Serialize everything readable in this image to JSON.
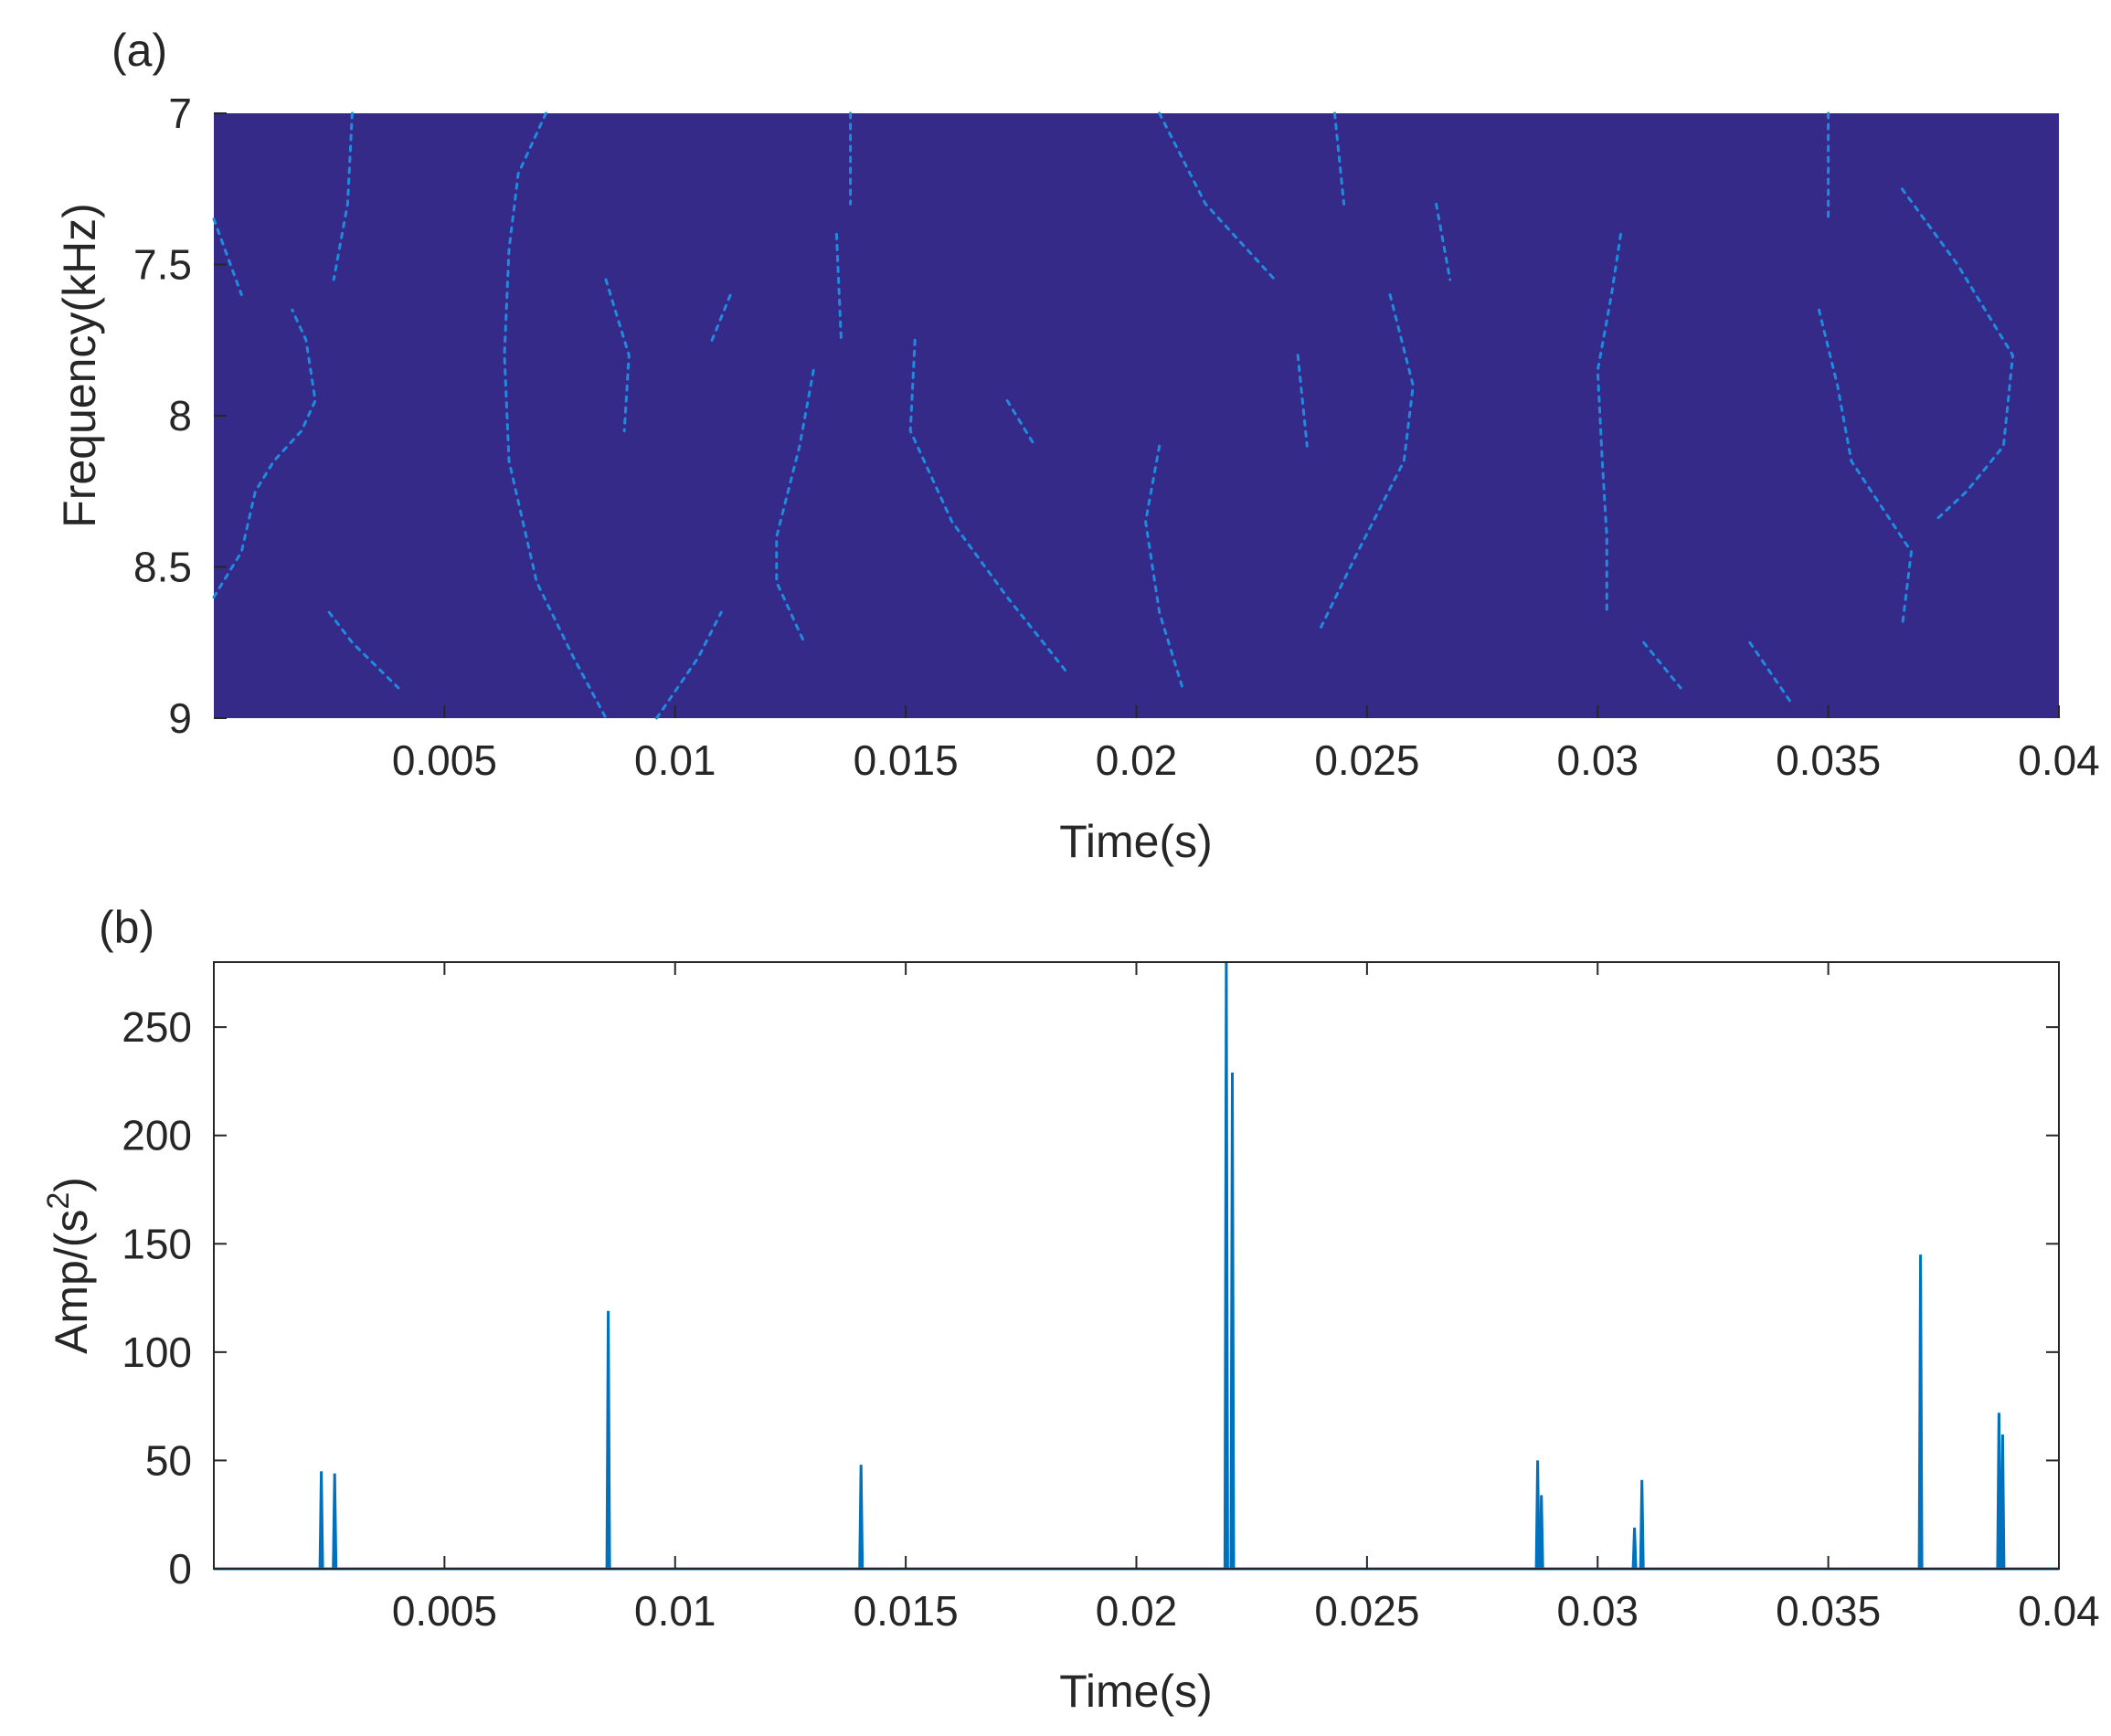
{
  "chart_data": [
    {
      "panel_label": "(a)",
      "type": "heatmap",
      "xlabel": "Time(s)",
      "ylabel": "Frequency(kHz)",
      "xlim": [
        0,
        0.04
      ],
      "ylim": [
        7,
        9
      ],
      "y_reversed": true,
      "xticks": [
        "0.005",
        "0.01",
        "0.015",
        "0.02",
        "0.025",
        "0.03",
        "0.035",
        "0.04"
      ],
      "yticks": [
        "7",
        "7.5",
        "8",
        "8.5",
        "9"
      ],
      "background_color": "#352a87",
      "ridge_color": "#1e8be0",
      "ridges": [
        [
          [
            0.0,
            8.6
          ],
          [
            0.0006,
            8.45
          ],
          [
            0.0009,
            8.25
          ],
          [
            0.0013,
            8.15
          ],
          [
            0.0019,
            8.05
          ],
          [
            0.0022,
            7.95
          ],
          [
            0.002,
            7.75
          ],
          [
            0.0017,
            7.65
          ]
        ],
        [
          [
            0.0,
            7.35
          ],
          [
            0.0006,
            7.6
          ]
        ],
        [
          [
            0.0025,
            8.65
          ],
          [
            0.003,
            8.75
          ],
          [
            0.004,
            8.9
          ]
        ],
        [
          [
            0.003,
            7.0
          ],
          [
            0.0029,
            7.3
          ],
          [
            0.0026,
            7.55
          ]
        ],
        [
          [
            0.0072,
            7.0
          ],
          [
            0.0066,
            7.2
          ],
          [
            0.0064,
            7.45
          ],
          [
            0.0063,
            7.8
          ],
          [
            0.0064,
            8.15
          ],
          [
            0.007,
            8.55
          ],
          [
            0.0078,
            8.8
          ],
          [
            0.0085,
            9.0
          ]
        ],
        [
          [
            0.0085,
            7.55
          ],
          [
            0.009,
            7.8
          ],
          [
            0.0089,
            8.05
          ]
        ],
        [
          [
            0.0096,
            9.0
          ],
          [
            0.0105,
            8.8
          ],
          [
            0.011,
            8.65
          ]
        ],
        [
          [
            0.0108,
            7.75
          ],
          [
            0.0112,
            7.6
          ]
        ],
        [
          [
            0.0138,
            7.0
          ],
          [
            0.0138,
            7.3
          ]
        ],
        [
          [
            0.0135,
            7.4
          ],
          [
            0.0136,
            7.75
          ]
        ],
        [
          [
            0.013,
            7.85
          ],
          [
            0.0127,
            8.1
          ],
          [
            0.0122,
            8.4
          ],
          [
            0.0122,
            8.55
          ],
          [
            0.0128,
            8.75
          ]
        ],
        [
          [
            0.0152,
            7.75
          ],
          [
            0.0151,
            8.05
          ],
          [
            0.016,
            8.35
          ],
          [
            0.0172,
            8.6
          ],
          [
            0.0185,
            8.85
          ]
        ],
        [
          [
            0.0172,
            7.95
          ],
          [
            0.0178,
            8.1
          ]
        ],
        [
          [
            0.0205,
            7.0
          ],
          [
            0.0215,
            7.3
          ],
          [
            0.023,
            7.55
          ]
        ],
        [
          [
            0.0205,
            8.1
          ],
          [
            0.0202,
            8.35
          ],
          [
            0.0205,
            8.65
          ],
          [
            0.021,
            8.9
          ]
        ],
        [
          [
            0.0235,
            7.8
          ],
          [
            0.0237,
            8.1
          ]
        ],
        [
          [
            0.0243,
            7.0
          ],
          [
            0.0245,
            7.3
          ]
        ],
        [
          [
            0.0255,
            7.6
          ],
          [
            0.026,
            7.9
          ],
          [
            0.0258,
            8.15
          ],
          [
            0.0248,
            8.45
          ],
          [
            0.024,
            8.7
          ]
        ],
        [
          [
            0.0265,
            7.3
          ],
          [
            0.0268,
            7.55
          ]
        ],
        [
          [
            0.0305,
            7.4
          ],
          [
            0.0303,
            7.6
          ],
          [
            0.03,
            7.85
          ],
          [
            0.0301,
            8.15
          ],
          [
            0.0302,
            8.4
          ],
          [
            0.0302,
            8.65
          ]
        ],
        [
          [
            0.031,
            8.75
          ],
          [
            0.0318,
            8.9
          ]
        ],
        [
          [
            0.035,
            7.0
          ],
          [
            0.035,
            7.35
          ]
        ],
        [
          [
            0.0348,
            7.65
          ],
          [
            0.0352,
            7.9
          ],
          [
            0.0355,
            8.15
          ],
          [
            0.0368,
            8.45
          ],
          [
            0.0366,
            8.7
          ]
        ],
        [
          [
            0.0366,
            7.25
          ],
          [
            0.0378,
            7.5
          ],
          [
            0.039,
            7.8
          ],
          [
            0.0388,
            8.1
          ],
          [
            0.038,
            8.25
          ],
          [
            0.0373,
            8.35
          ]
        ],
        [
          [
            0.0333,
            8.75
          ],
          [
            0.0342,
            8.95
          ]
        ]
      ]
    },
    {
      "panel_label": "(b)",
      "type": "line",
      "xlabel": "Time(s)",
      "ylabel": "Amp/(s",
      "ylabel_sup": "2",
      "ylabel_end": ")",
      "xlim": [
        0,
        0.04
      ],
      "ylim": [
        0,
        280
      ],
      "xticks": [
        "0.005",
        "0.01",
        "0.015",
        "0.02",
        "0.025",
        "0.03",
        "0.035",
        "0.04"
      ],
      "yticks": [
        "0",
        "50",
        "100",
        "150",
        "200",
        "250"
      ],
      "line_color": "#0072bd",
      "spikes": [
        {
          "x": 0.00233,
          "y": 45
        },
        {
          "x": 0.00262,
          "y": 44
        },
        {
          "x": 0.00855,
          "y": 119
        },
        {
          "x": 0.01403,
          "y": 48
        },
        {
          "x": 0.02195,
          "y": 280
        },
        {
          "x": 0.02208,
          "y": 229
        },
        {
          "x": 0.0287,
          "y": 50
        },
        {
          "x": 0.02878,
          "y": 34
        },
        {
          "x": 0.0308,
          "y": 19
        },
        {
          "x": 0.03096,
          "y": 41
        },
        {
          "x": 0.037,
          "y": 145
        },
        {
          "x": 0.0387,
          "y": 72
        },
        {
          "x": 0.03878,
          "y": 62
        }
      ]
    }
  ]
}
